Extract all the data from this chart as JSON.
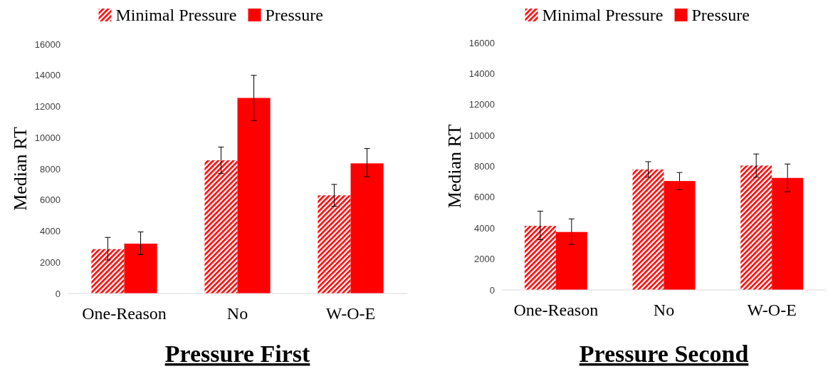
{
  "chart_data": [
    {
      "type": "bar",
      "title": "Pressure First",
      "ylabel": "Median RT",
      "categories": [
        "One-Reason",
        "No",
        "W-O-E"
      ],
      "ylim": [
        0,
        16000
      ],
      "yticks": [
        0,
        2000,
        4000,
        6000,
        8000,
        10000,
        12000,
        14000,
        16000
      ],
      "grid": false,
      "legend": "top",
      "series": [
        {
          "name": "Minimal Pressure",
          "color": "#ff0000",
          "values": [
            2850,
            8550,
            6300
          ],
          "errors": [
            [
              2150,
              3600
            ],
            [
              7700,
              9400
            ],
            [
              5600,
              7000
            ]
          ]
        },
        {
          "name": "Pressure",
          "color": "#ff0000",
          "values": [
            3200,
            12550,
            8350
          ],
          "errors": [
            [
              2500,
              3950
            ],
            [
              11100,
              14000
            ],
            [
              7500,
              9300
            ]
          ]
        }
      ]
    },
    {
      "type": "bar",
      "title": "Pressure Second",
      "ylabel": "Median RT",
      "categories": [
        "One-Reason",
        "No",
        "W-O-E"
      ],
      "ylim": [
        0,
        16000
      ],
      "yticks": [
        0,
        2000,
        4000,
        6000,
        8000,
        10000,
        12000,
        14000,
        16000
      ],
      "grid": false,
      "legend": "top",
      "series": [
        {
          "name": "Minimal Pressure",
          "color": "#ff0000",
          "values": [
            4150,
            7800,
            8050
          ],
          "errors": [
            [
              3250,
              5100
            ],
            [
              7300,
              8300
            ],
            [
              7300,
              8800
            ]
          ]
        },
        {
          "name": "Pressure",
          "color": "#ff0000",
          "values": [
            3750,
            7050,
            7250
          ],
          "errors": [
            [
              2950,
              4600
            ],
            [
              6500,
              7600
            ],
            [
              6350,
              8150
            ]
          ]
        }
      ]
    }
  ]
}
